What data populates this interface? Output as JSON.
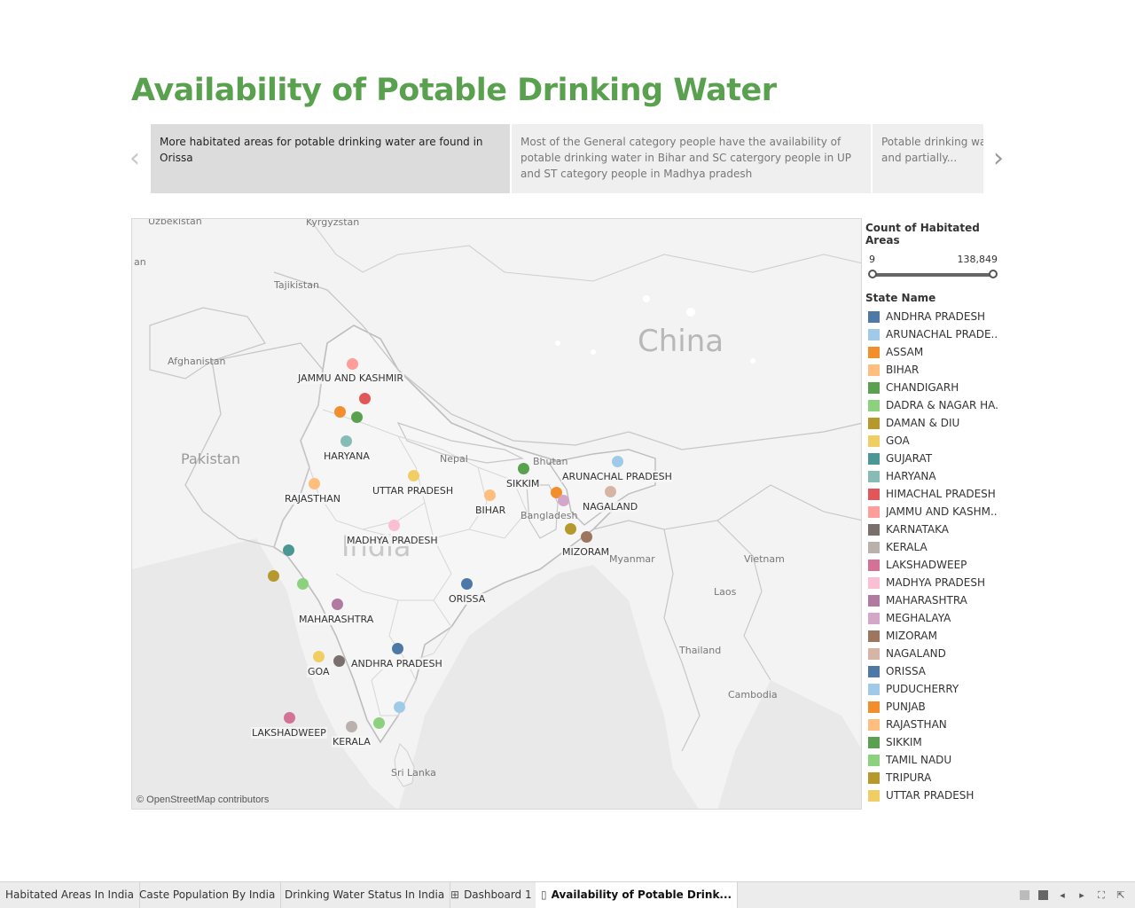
{
  "page": {
    "title": "Availability of Potable Drinking Water"
  },
  "story": {
    "captions": [
      "More habitated areas for potable drinking water are found in Orissa",
      "Most of the General category people have the availability of potable drinking water in Bihar and SC catergory people in UP and ST category people in Madhya pradesh",
      "Potable drinking water is available to General category people and partially..."
    ],
    "active_index": 0,
    "prev_icon": "chevron-left-icon",
    "next_icon": "chevron-right-icon"
  },
  "map": {
    "attribution": "© OpenStreetMap contributors",
    "place_labels": {
      "china": "China",
      "india": "India",
      "pakistan": "Pakistan",
      "afghanistan": "Afghanistan",
      "tajikistan": "Tajikistan",
      "kyrgyzstan": "Kyrgyzstan",
      "uzbekistan": "Uzbekistan",
      "an": "an",
      "nepal": "Nepal",
      "bhutan": "Bhutan",
      "bangladesh": "Bangladesh",
      "myanmar": "Myanmar",
      "vietnam": "Vietnam",
      "laos": "Laos",
      "thailand": "Thailand",
      "cambodia": "Cambodia",
      "sri_lanka": "Sri Lanka"
    },
    "state_labels": {
      "jammu_kashmir": "JAMMU AND KASHMIR",
      "haryana": "HARYANA",
      "rajasthan": "RAJASTHAN",
      "uttar_pradesh": "UTTAR PRADESH",
      "madhya_pradesh": "MADHYA PRADESH",
      "bihar": "BIHAR",
      "sikkim": "SIKKIM",
      "arunachal": "ARUNACHAL PRADESH",
      "nagaland": "NAGALAND",
      "mizoram": "MIZORAM",
      "orissa": "ORISSA",
      "maharashtra": "MAHARASHTRA",
      "andhra": "ANDHRA PRADESH",
      "goa": "GOA",
      "lakshadweep": "LAKSHADWEEP",
      "kerala": "KERALA"
    }
  },
  "legend": {
    "size_title": "Count of Habitated Areas",
    "size_min": "9",
    "size_max": "138,849",
    "color_title": "State Name",
    "items": [
      {
        "label": "ANDHRA PRADESH",
        "color": "#4e79a7"
      },
      {
        "label": "ARUNACHAL PRADE..",
        "color": "#a0cbe8"
      },
      {
        "label": "ASSAM",
        "color": "#f28e2b"
      },
      {
        "label": "BIHAR",
        "color": "#ffbe7d"
      },
      {
        "label": "CHANDIGARH",
        "color": "#59a14f"
      },
      {
        "label": "DADRA & NAGAR HA..",
        "color": "#8cd17d"
      },
      {
        "label": "DAMAN & DIU",
        "color": "#b6992d"
      },
      {
        "label": "GOA",
        "color": "#f1ce63"
      },
      {
        "label": "GUJARAT",
        "color": "#499894"
      },
      {
        "label": "HARYANA",
        "color": "#86bcb6"
      },
      {
        "label": "HIMACHAL PRADESH",
        "color": "#e15759"
      },
      {
        "label": "JAMMU AND KASHM..",
        "color": "#ff9d9a"
      },
      {
        "label": "KARNATAKA",
        "color": "#79706e"
      },
      {
        "label": "KERALA",
        "color": "#bab0ac"
      },
      {
        "label": "LAKSHADWEEP",
        "color": "#d37295"
      },
      {
        "label": "MADHYA PRADESH",
        "color": "#fabfd2"
      },
      {
        "label": "MAHARASHTRA",
        "color": "#b07aa1"
      },
      {
        "label": "MEGHALAYA",
        "color": "#d4a6c8"
      },
      {
        "label": "MIZORAM",
        "color": "#9d7660"
      },
      {
        "label": "NAGALAND",
        "color": "#d7b5a6"
      },
      {
        "label": "ORISSA",
        "color": "#4e79a7"
      },
      {
        "label": "PUDUCHERRY",
        "color": "#a0cbe8"
      },
      {
        "label": "PUNJAB",
        "color": "#f28e2b"
      },
      {
        "label": "RAJASTHAN",
        "color": "#ffbe7d"
      },
      {
        "label": "SIKKIM",
        "color": "#59a14f"
      },
      {
        "label": "TAMIL NADU",
        "color": "#8cd17d"
      },
      {
        "label": "TRIPURA",
        "color": "#b6992d"
      },
      {
        "label": "UTTAR PRADESH",
        "color": "#f1ce63"
      }
    ]
  },
  "tabs": [
    {
      "label": "Habitated Areas In India",
      "icon": ""
    },
    {
      "label": "Caste Population By  India",
      "icon": ""
    },
    {
      "label": "Drinking Water Status In India",
      "icon": ""
    },
    {
      "label": "Dashboard 1",
      "icon": "dashboard-icon"
    },
    {
      "label": "Availability of Potable Drink...",
      "icon": "story-icon"
    }
  ],
  "toolbar_icons": [
    "view-toggle-icon",
    "presentation-icon",
    "previous-icon",
    "next-icon",
    "fullscreen-icon",
    "share-icon"
  ]
}
